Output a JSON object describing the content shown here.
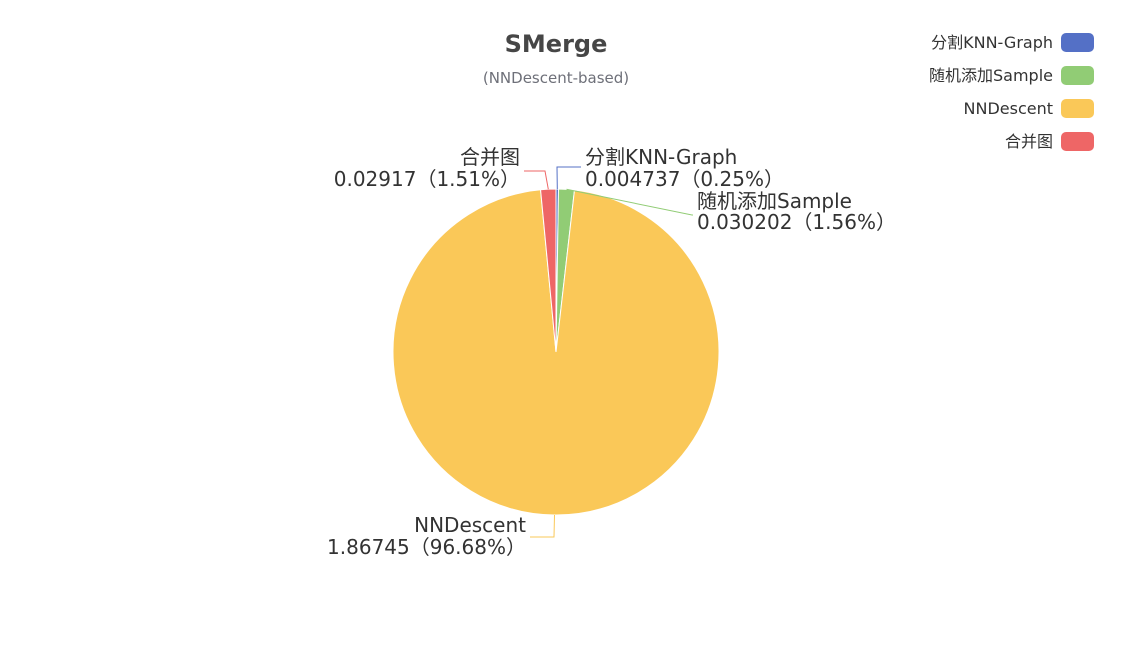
{
  "chart_data": {
    "type": "pie",
    "title": "SMerge",
    "subtitle": "(NNDescent-based)",
    "slices": [
      {
        "name": "分割KNN-Graph",
        "value": 0.004737,
        "percent_label": "0.25%",
        "value_label": "0.004737",
        "color": "#5470c6"
      },
      {
        "name": "随机添加Sample",
        "value": 0.030202,
        "percent_label": "1.56%",
        "value_label": "0.030202",
        "color": "#91cc75"
      },
      {
        "name": "NNDescent",
        "value": 1.86745,
        "percent_label": "96.68%",
        "value_label": "1.86745",
        "color": "#fac858"
      },
      {
        "name": "合并图",
        "value": 0.02917,
        "percent_label": "1.51%",
        "value_label": "0.02917",
        "color": "#ee6666"
      }
    ],
    "legend": {
      "position": "top-right",
      "items": [
        "分割KNN-Graph",
        "随机添加Sample",
        "NNDescent",
        "合并图"
      ]
    }
  }
}
